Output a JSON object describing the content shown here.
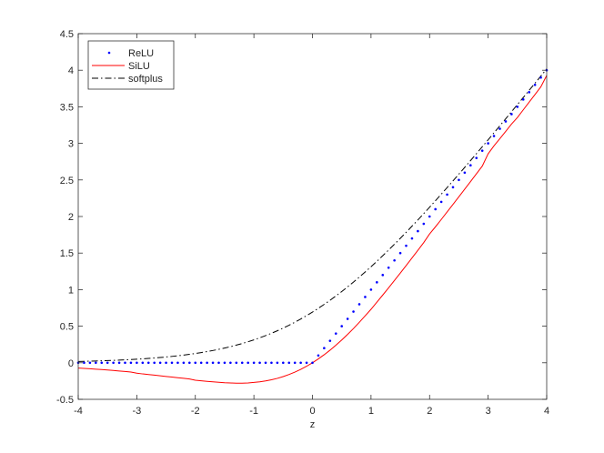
{
  "chart_data": {
    "type": "line",
    "title": "",
    "xlabel": "z",
    "ylabel": "",
    "xlim": [
      -4,
      4
    ],
    "ylim": [
      -0.5,
      4.5
    ],
    "xticks": [
      -4,
      -3,
      -2,
      -1,
      0,
      1,
      2,
      3,
      4
    ],
    "xtick_labels": [
      "-4",
      "-3",
      "-2",
      "-1",
      "0",
      "1",
      "2",
      "3",
      "4"
    ],
    "yticks": [
      -0.5,
      0,
      0.5,
      1,
      1.5,
      2,
      2.5,
      3,
      3.5,
      4,
      4.5
    ],
    "ytick_labels": [
      "-0.5",
      "0",
      "0.5",
      "1",
      "1.5",
      "2",
      "2.5",
      "3",
      "3.5",
      "4",
      "4.5"
    ],
    "grid": false,
    "legend_position": "top-left",
    "x_sample_step": 0.1,
    "series": [
      {
        "name": "ReLU",
        "style": "dotted",
        "color": "#0000ff",
        "x": [
          -4.0,
          -3.9,
          -3.8,
          -3.7,
          -3.6,
          -3.5,
          -3.4,
          -3.3,
          -3.2,
          -3.1,
          -3.0,
          -2.9,
          -2.8,
          -2.7,
          -2.6,
          -2.5,
          -2.4,
          -2.3,
          -2.2,
          -2.1,
          -2.0,
          -1.9,
          -1.8,
          -1.7,
          -1.6,
          -1.5,
          -1.4,
          -1.3,
          -1.2,
          -1.1,
          -1.0,
          -0.9,
          -0.8,
          -0.7,
          -0.6,
          -0.5,
          -0.4,
          -0.3,
          -0.2,
          -0.1,
          0.0,
          0.1,
          0.2,
          0.3,
          0.4,
          0.5,
          0.6,
          0.7,
          0.8,
          0.9,
          1.0,
          1.1,
          1.2,
          1.3,
          1.4,
          1.5,
          1.6,
          1.7,
          1.8,
          1.9,
          2.0,
          2.1,
          2.2,
          2.3,
          2.4,
          2.5,
          2.6,
          2.7,
          2.8,
          2.9,
          3.0,
          3.1,
          3.2,
          3.3,
          3.4,
          3.5,
          3.6,
          3.7,
          3.8,
          3.9,
          4.0
        ],
        "y": [
          0,
          0,
          0,
          0,
          0,
          0,
          0,
          0,
          0,
          0,
          0,
          0,
          0,
          0,
          0,
          0,
          0,
          0,
          0,
          0,
          0,
          0,
          0,
          0,
          0,
          0,
          0,
          0,
          0,
          0,
          0,
          0,
          0,
          0,
          0,
          0,
          0,
          0,
          0,
          0,
          0.0,
          0.1,
          0.2,
          0.3,
          0.4,
          0.5,
          0.6,
          0.7,
          0.8,
          0.9,
          1.0,
          1.1,
          1.2,
          1.3,
          1.4,
          1.5,
          1.6,
          1.7,
          1.8,
          1.9,
          2.0,
          2.1,
          2.2,
          2.3,
          2.4,
          2.5,
          2.6,
          2.7,
          2.8,
          2.9,
          3.0,
          3.1,
          3.2,
          3.3,
          3.4,
          3.5,
          3.6,
          3.7,
          3.8,
          3.9,
          4.0
        ]
      },
      {
        "name": "SiLU",
        "style": "solid",
        "color": "#ff0000",
        "x": [
          -4.0,
          -3.9,
          -3.8,
          -3.7,
          -3.6,
          -3.5,
          -3.4,
          -3.3,
          -3.2,
          -3.1,
          -3.0,
          -2.9,
          -2.8,
          -2.7,
          -2.6,
          -2.5,
          -2.4,
          -2.3,
          -2.2,
          -2.1,
          -2.0,
          -1.9,
          -1.8,
          -1.7,
          -1.6,
          -1.5,
          -1.4,
          -1.3,
          -1.2,
          -1.1,
          -1.0,
          -0.9,
          -0.8,
          -0.7,
          -0.6,
          -0.5,
          -0.4,
          -0.3,
          -0.2,
          -0.1,
          0.0,
          0.1,
          0.2,
          0.3,
          0.4,
          0.5,
          0.6,
          0.7,
          0.8,
          0.9,
          1.0,
          1.1,
          1.2,
          1.3,
          1.4,
          1.5,
          1.6,
          1.7,
          1.8,
          1.9,
          2.0,
          2.1,
          2.2,
          2.3,
          2.4,
          2.5,
          2.6,
          2.7,
          2.8,
          2.9,
          3.0,
          3.1,
          3.2,
          3.3,
          3.4,
          3.5,
          3.6,
          3.7,
          3.8,
          3.9,
          4.0
        ],
        "y": [
          -0.0719,
          -0.0768,
          -0.082,
          -0.0874,
          -0.0932,
          -0.0993,
          -0.1057,
          -0.1125,
          -0.1196,
          -0.1271,
          -0.1423,
          -0.1525,
          -0.1603,
          -0.1691,
          -0.1779,
          -0.1868,
          -0.1956,
          -0.2044,
          -0.213,
          -0.2212,
          -0.2384,
          -0.2469,
          -0.2545,
          -0.2611,
          -0.2669,
          -0.2736,
          -0.2762,
          -0.2789,
          -0.2785,
          -0.2755,
          -0.2689,
          -0.2604,
          -0.2475,
          -0.232,
          -0.2133,
          -0.1888,
          -0.1605,
          -0.1277,
          -0.09,
          -0.0475,
          0.0,
          0.0525,
          0.11,
          0.1723,
          0.2395,
          0.3112,
          0.3875,
          0.468,
          0.5534,
          0.6417,
          0.7311,
          0.8288,
          0.9257,
          1.0249,
          1.1253,
          1.2267,
          1.3291,
          1.4337,
          1.5381,
          1.6437,
          1.7616,
          1.8584,
          1.9596,
          2.0623,
          2.165,
          2.2697,
          2.3738,
          2.4784,
          2.5834,
          2.6891,
          2.8577,
          2.9659,
          3.064,
          3.1643,
          3.2648,
          3.3536,
          3.4583,
          3.563,
          3.6677,
          3.7725,
          3.9281
        ]
      },
      {
        "name": "softplus",
        "style": "dashdot",
        "color": "#000000",
        "x": [
          -4.0,
          -3.9,
          -3.8,
          -3.7,
          -3.6,
          -3.5,
          -3.4,
          -3.3,
          -3.2,
          -3.1,
          -3.0,
          -2.9,
          -2.8,
          -2.7,
          -2.6,
          -2.5,
          -2.4,
          -2.3,
          -2.2,
          -2.1,
          -2.0,
          -1.9,
          -1.8,
          -1.7,
          -1.6,
          -1.5,
          -1.4,
          -1.3,
          -1.2,
          -1.1,
          -1.0,
          -0.9,
          -0.8,
          -0.7,
          -0.6,
          -0.5,
          -0.4,
          -0.3,
          -0.2,
          -0.1,
          0.0,
          0.1,
          0.2,
          0.3,
          0.4,
          0.5,
          0.6,
          0.7,
          0.8,
          0.9,
          1.0,
          1.1,
          1.2,
          1.3,
          1.4,
          1.5,
          1.6,
          1.7,
          1.8,
          1.9,
          2.0,
          2.1,
          2.2,
          2.3,
          2.4,
          2.5,
          2.6,
          2.7,
          2.8,
          2.9,
          3.0,
          3.1,
          3.2,
          3.3,
          3.4,
          3.5,
          3.6,
          3.7,
          3.8,
          3.9,
          4.0
        ],
        "y": [
          0.0181,
          0.02,
          0.0221,
          0.0244,
          0.027,
          0.0298,
          0.0328,
          0.0362,
          0.04,
          0.0441,
          0.0486,
          0.0535,
          0.059,
          0.065,
          0.0716,
          0.0789,
          0.0869,
          0.0956,
          0.1051,
          0.1156,
          0.1269,
          0.1393,
          0.1529,
          0.1676,
          0.1835,
          0.2014,
          0.2201,
          0.2413,
          0.2633,
          0.2873,
          0.3133,
          0.3412,
          0.3711,
          0.4032,
          0.4375,
          0.4741,
          0.513,
          0.5544,
          0.5981,
          0.6444,
          0.6931,
          0.7444,
          0.7981,
          0.8544,
          0.913,
          0.9741,
          1.0375,
          1.1032,
          1.1711,
          1.2412,
          1.3133,
          1.3873,
          1.4633,
          1.5413,
          1.6201,
          1.7014,
          1.7835,
          1.8676,
          1.9529,
          2.0393,
          2.1269,
          2.2156,
          2.3051,
          2.3956,
          2.4869,
          2.5789,
          2.6716,
          2.765,
          2.859,
          2.9535,
          3.0486,
          3.1441,
          3.24,
          3.3362,
          3.4328,
          3.5298,
          3.627,
          3.7244,
          3.8221,
          3.92,
          4.0181
        ]
      }
    ]
  }
}
